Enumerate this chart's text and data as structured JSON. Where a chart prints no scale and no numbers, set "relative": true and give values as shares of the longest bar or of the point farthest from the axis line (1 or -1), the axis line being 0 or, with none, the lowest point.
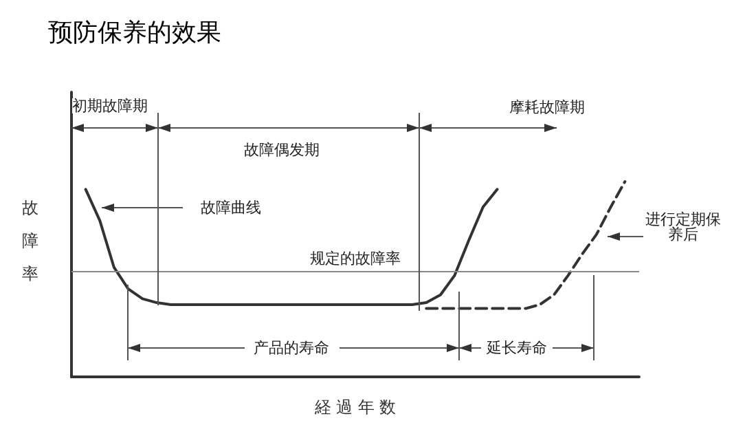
{
  "chart_data": {
    "type": "line",
    "title": "预防保养的效果",
    "xlabel": "経 過 年 数",
    "ylabel": "故障率",
    "relative": true,
    "grid": false,
    "marker": "none",
    "categories": [
      null,
      null,
      null,
      null,
      null,
      null,
      null,
      null,
      null,
      null,
      null,
      null,
      null,
      null,
      null,
      null,
      null,
      null,
      null,
      null,
      null,
      null,
      null,
      null,
      null,
      null,
      null,
      null,
      null,
      null,
      null,
      null,
      null,
      null,
      null,
      null,
      null,
      null,
      null,
      null,
      null
    ],
    "series": [
      {
        "color": "#333333",
        "line_style": "solid",
        "values": [
          null,
          0.96,
          0.8,
          0.56,
          0.45,
          0.4,
          0.38,
          0.37,
          0.37,
          0.37,
          0.37,
          0.37,
          0.37,
          0.37,
          0.37,
          0.37,
          0.37,
          0.37,
          0.37,
          0.37,
          0.37,
          0.37,
          0.37,
          0.37,
          0.37,
          0.38,
          0.42,
          0.52,
          0.7,
          0.87,
          0.96,
          null,
          null,
          null,
          null,
          null,
          null,
          null,
          null,
          null,
          null
        ]
      },
      {
        "color": "#333333",
        "line_style": "dashed",
        "values": [
          null,
          null,
          null,
          null,
          null,
          null,
          null,
          null,
          null,
          null,
          null,
          null,
          null,
          null,
          null,
          null,
          null,
          null,
          null,
          null,
          null,
          null,
          null,
          null,
          null,
          0.35,
          0.35,
          0.35,
          0.35,
          0.35,
          0.35,
          0.35,
          0.35,
          0.37,
          0.42,
          0.52,
          0.63,
          0.73,
          0.87,
          1,
          null
        ]
      }
    ],
    "ref_lines": [
      {
        "axis": "y",
        "value": 0.54,
        "label": "规定的故障率",
        "color": "#888888"
      }
    ],
    "annotations": [
      "初期故障期",
      "故障偶发期",
      "摩耗故障期",
      "故障曲线",
      "产品的寿命",
      "延长寿命",
      "进行定期保养后"
    ]
  }
}
